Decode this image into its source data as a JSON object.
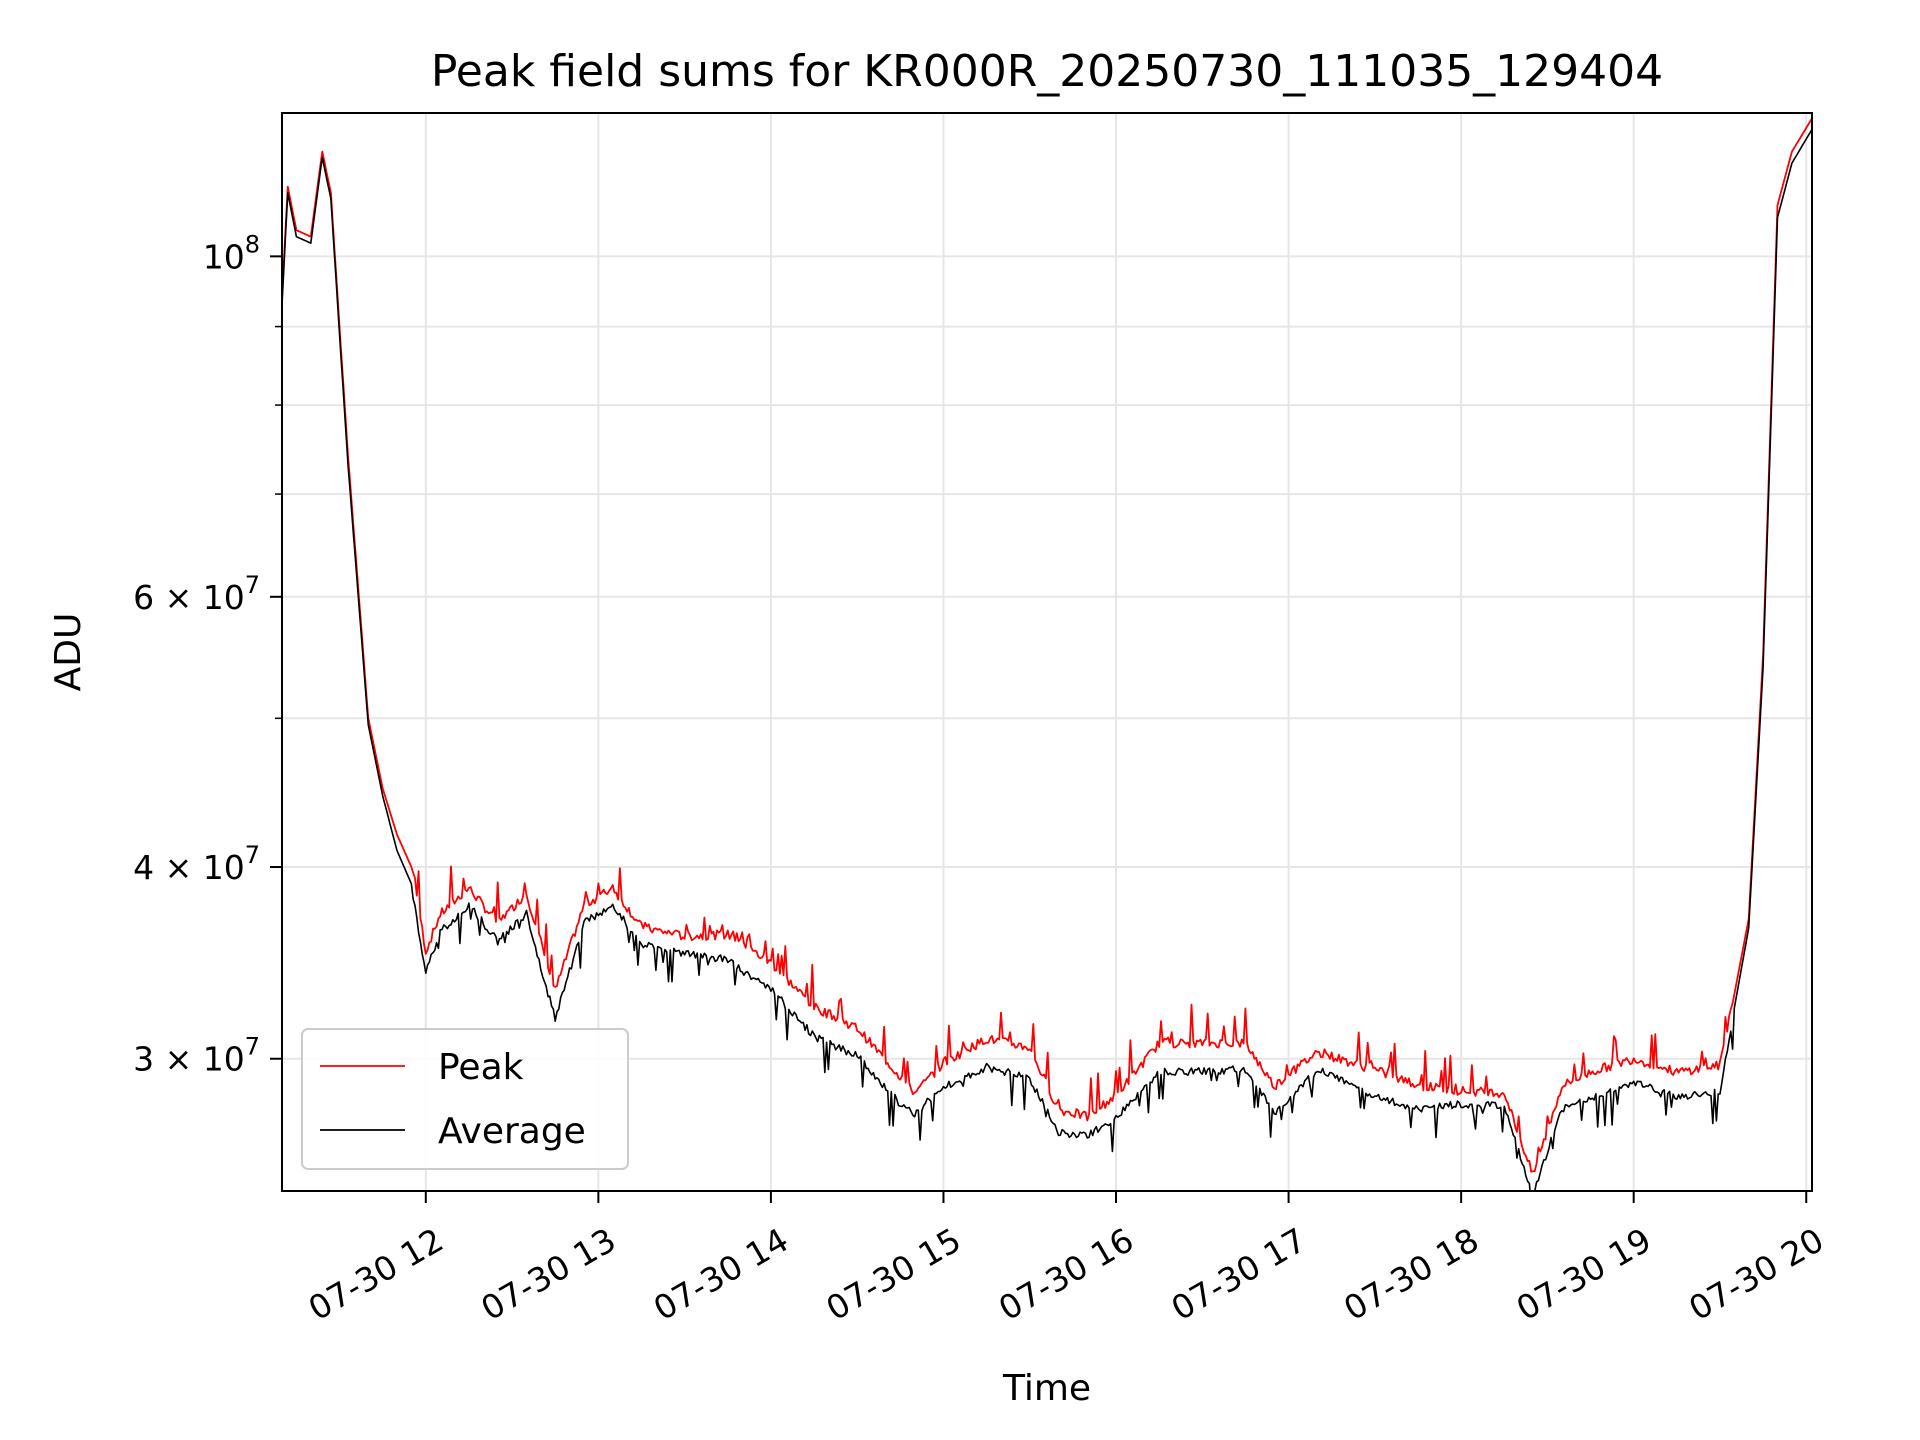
{
  "chart_data": {
    "type": "line",
    "title": "Peak field sums for KR000R_20250730_111035_129404",
    "xlabel": "Time",
    "ylabel": "ADU",
    "x_scale": "time",
    "y_scale": "log",
    "xlim": [
      "2025-07-30 11:10",
      "2025-07-30 20:02"
    ],
    "ylim": [
      24600000,
      124000000
    ],
    "grid": true,
    "legend_position": "lower-left",
    "x_ticks": [
      {
        "label": "07-30 12",
        "value": "2025-07-30 12:00"
      },
      {
        "label": "07-30 13",
        "value": "2025-07-30 13:00"
      },
      {
        "label": "07-30 14",
        "value": "2025-07-30 14:00"
      },
      {
        "label": "07-30 15",
        "value": "2025-07-30 15:00"
      },
      {
        "label": "07-30 16",
        "value": "2025-07-30 16:00"
      },
      {
        "label": "07-30 17",
        "value": "2025-07-30 17:00"
      },
      {
        "label": "07-30 18",
        "value": "2025-07-30 18:00"
      },
      {
        "label": "07-30 19",
        "value": "2025-07-30 19:00"
      },
      {
        "label": "07-30 20",
        "value": "2025-07-30 20:00"
      }
    ],
    "y_ticks": [
      {
        "label": "3 × 10⁷",
        "value": 30000000,
        "base": "3 × 10",
        "exp": "7"
      },
      {
        "label": "4 × 10⁷",
        "value": 40000000,
        "base": "4 × 10",
        "exp": "7"
      },
      {
        "label": "6 × 10⁷",
        "value": 60000000,
        "base": "6 × 10",
        "exp": "7"
      },
      {
        "label": "10⁸",
        "value": 100000000,
        "base": "10",
        "exp": "8"
      }
    ],
    "y_minor_ticks": [
      50000000,
      70000000,
      80000000,
      90000000
    ],
    "series": [
      {
        "name": "Peak",
        "color": "#ff0000",
        "x": [
          "2025-07-30 11:10",
          "2025-07-30 11:12",
          "2025-07-30 11:15",
          "2025-07-30 11:20",
          "2025-07-30 11:24",
          "2025-07-30 11:27",
          "2025-07-30 11:30",
          "2025-07-30 11:33",
          "2025-07-30 11:40",
          "2025-07-30 11:45",
          "2025-07-30 11:50",
          "2025-07-30 11:55",
          "2025-07-30 12:00",
          "2025-07-30 12:05",
          "2025-07-30 12:15",
          "2025-07-30 12:25",
          "2025-07-30 12:35",
          "2025-07-30 12:45",
          "2025-07-30 12:55",
          "2025-07-30 13:05",
          "2025-07-30 13:15",
          "2025-07-30 13:30",
          "2025-07-30 13:45",
          "2025-07-30 14:00",
          "2025-07-30 14:15",
          "2025-07-30 14:30",
          "2025-07-30 14:45",
          "2025-07-30 14:50",
          "2025-07-30 15:00",
          "2025-07-30 15:15",
          "2025-07-30 15:30",
          "2025-07-30 15:40",
          "2025-07-30 15:50",
          "2025-07-30 16:00",
          "2025-07-30 16:15",
          "2025-07-30 16:30",
          "2025-07-30 16:45",
          "2025-07-30 16:55",
          "2025-07-30 17:10",
          "2025-07-30 17:30",
          "2025-07-30 17:45",
          "2025-07-30 18:00",
          "2025-07-30 18:15",
          "2025-07-30 18:25",
          "2025-07-30 18:35",
          "2025-07-30 18:45",
          "2025-07-30 19:00",
          "2025-07-30 19:15",
          "2025-07-30 19:30",
          "2025-07-30 19:40",
          "2025-07-30 19:45",
          "2025-07-30 19:50",
          "2025-07-30 19:55",
          "2025-07-30 20:02"
        ],
        "y": [
          94000000,
          111000000,
          104000000,
          103000000,
          117000000,
          110000000,
          90000000,
          74000000,
          50000000,
          45000000,
          42000000,
          40000000,
          35000000,
          37000000,
          38500000,
          36500000,
          38200000,
          33000000,
          37500000,
          38500000,
          36300000,
          35800000,
          35900000,
          34400000,
          32200000,
          31200000,
          29000000,
          28300000,
          29600000,
          30700000,
          30300000,
          27600000,
          27300000,
          28200000,
          30500000,
          30500000,
          30500000,
          28600000,
          30100000,
          29300000,
          28600000,
          28400000,
          28300000,
          25000000,
          28600000,
          29200000,
          29800000,
          29200000,
          29500000,
          37000000,
          55000000,
          108000000,
          117000000,
          123000000
        ]
      },
      {
        "name": "Average",
        "color": "#000000",
        "x": [
          "2025-07-30 11:10",
          "2025-07-30 11:12",
          "2025-07-30 11:15",
          "2025-07-30 11:20",
          "2025-07-30 11:24",
          "2025-07-30 11:27",
          "2025-07-30 11:30",
          "2025-07-30 11:33",
          "2025-07-30 11:40",
          "2025-07-30 11:45",
          "2025-07-30 11:50",
          "2025-07-30 11:55",
          "2025-07-30 12:00",
          "2025-07-30 12:05",
          "2025-07-30 12:15",
          "2025-07-30 12:25",
          "2025-07-30 12:35",
          "2025-07-30 12:45",
          "2025-07-30 12:55",
          "2025-07-30 13:05",
          "2025-07-30 13:15",
          "2025-07-30 13:30",
          "2025-07-30 13:45",
          "2025-07-30 14:00",
          "2025-07-30 14:15",
          "2025-07-30 14:30",
          "2025-07-30 14:45",
          "2025-07-30 14:50",
          "2025-07-30 15:00",
          "2025-07-30 15:15",
          "2025-07-30 15:30",
          "2025-07-30 15:40",
          "2025-07-30 15:50",
          "2025-07-30 16:00",
          "2025-07-30 16:15",
          "2025-07-30 16:30",
          "2025-07-30 16:45",
          "2025-07-30 16:55",
          "2025-07-30 17:10",
          "2025-07-30 17:30",
          "2025-07-30 17:45",
          "2025-07-30 18:00",
          "2025-07-30 18:15",
          "2025-07-30 18:25",
          "2025-07-30 18:35",
          "2025-07-30 18:45",
          "2025-07-30 19:00",
          "2025-07-30 19:15",
          "2025-07-30 19:30",
          "2025-07-30 19:40",
          "2025-07-30 19:45",
          "2025-07-30 19:50",
          "2025-07-30 19:55",
          "2025-07-30 20:02"
        ],
        "y": [
          93000000,
          110000000,
          103000000,
          102000000,
          116000000,
          109000000,
          89000000,
          73000000,
          49500000,
          44500000,
          41000000,
          39000000,
          34300000,
          36500000,
          38000000,
          36000000,
          37500000,
          32000000,
          37000000,
          38000000,
          35800000,
          35300000,
          35000000,
          33500000,
          31200000,
          30300000,
          28200000,
          27800000,
          28900000,
          29800000,
          29300000,
          27000000,
          26900000,
          27600000,
          29600000,
          29600000,
          29700000,
          27800000,
          29700000,
          28500000,
          28000000,
          28200000,
          28100000,
          24600000,
          28000000,
          28400000,
          29100000,
          28500000,
          28700000,
          36500000,
          54000000,
          106000000,
          115000000,
          121000000
        ]
      }
    ]
  }
}
